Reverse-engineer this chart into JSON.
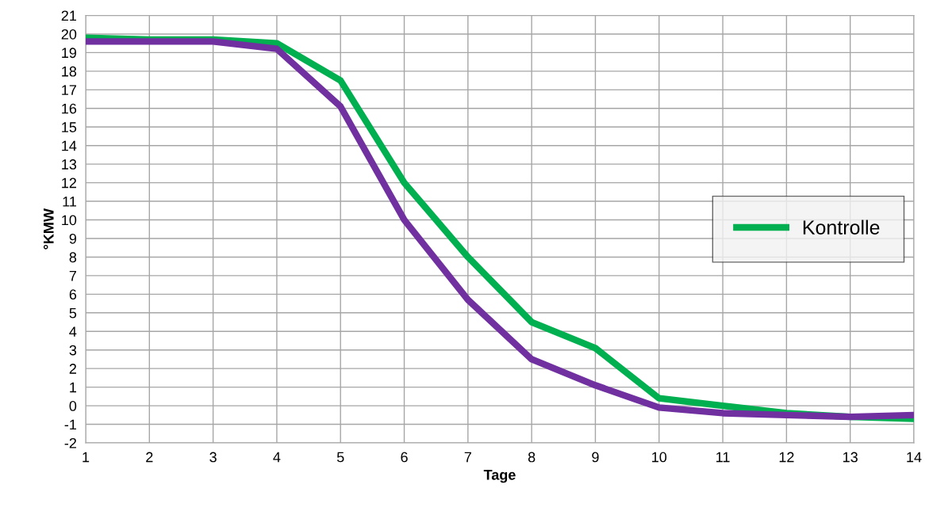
{
  "chart_data": {
    "type": "line",
    "xlabel": "Tage",
    "ylabel": "°KMW",
    "x": [
      1,
      2,
      3,
      4,
      5,
      6,
      7,
      8,
      9,
      10,
      11,
      12,
      13,
      14
    ],
    "xlim": [
      1,
      14
    ],
    "xticks": [
      1,
      2,
      3,
      4,
      5,
      6,
      7,
      8,
      9,
      10,
      11,
      12,
      13,
      14
    ],
    "ylim": [
      -2,
      21
    ],
    "yticks": [
      -2,
      -1,
      0,
      1,
      2,
      3,
      4,
      5,
      6,
      7,
      8,
      9,
      10,
      11,
      12,
      13,
      14,
      15,
      16,
      17,
      18,
      19,
      20,
      21
    ],
    "grid": true,
    "legend": "right",
    "marker": "none",
    "line_style": "solid",
    "series": [
      {
        "name": "Kontrolle",
        "color": "#00b050",
        "values": [
          19.8,
          19.7,
          19.7,
          19.5,
          17.5,
          12,
          8,
          4.5,
          3.1,
          0.4,
          0.0,
          -0.4,
          -0.6,
          -0.7
        ]
      },
      {
        "color": "#7030a0",
        "values": [
          19.6,
          19.6,
          19.6,
          19.2,
          16.1,
          10,
          5.7,
          2.5,
          1.1,
          -0.1,
          -0.4,
          -0.5,
          -0.6,
          -0.5
        ]
      }
    ]
  }
}
